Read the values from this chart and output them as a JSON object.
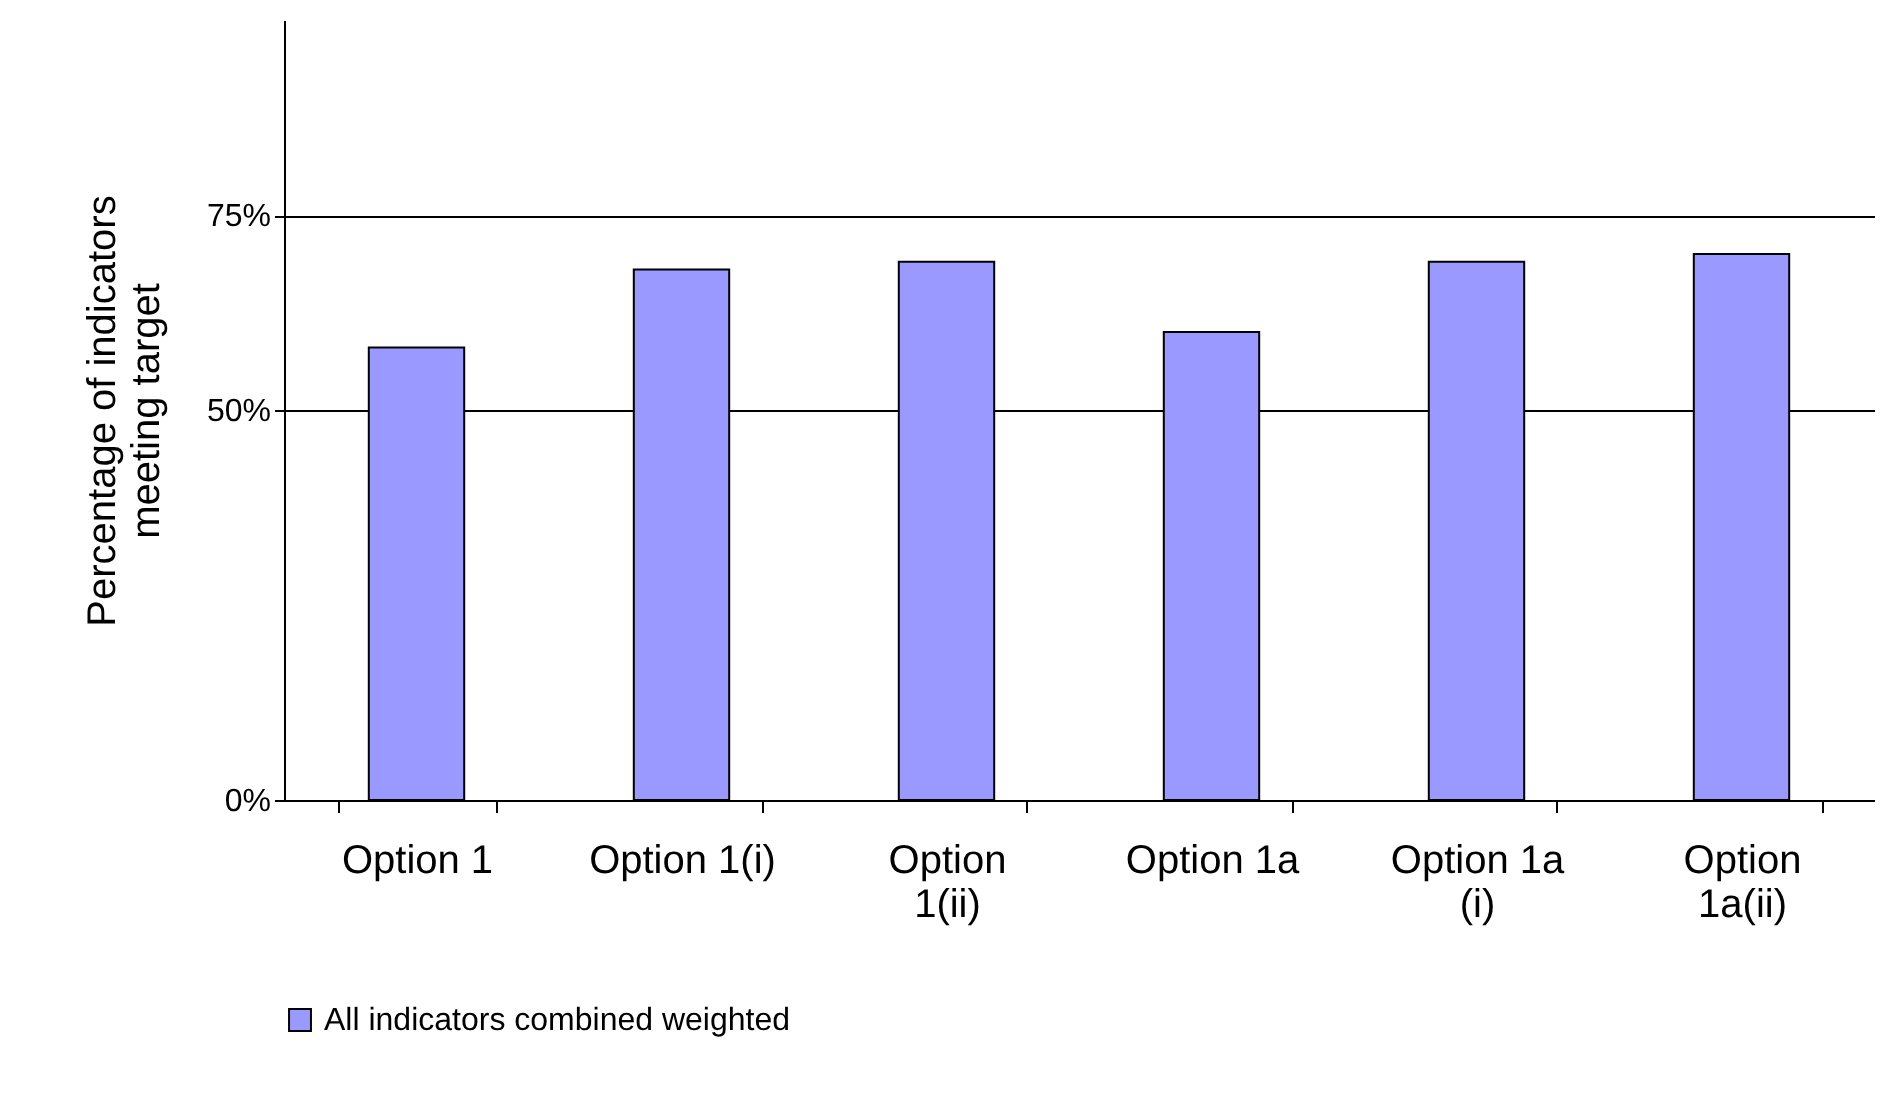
{
  "chart_data": {
    "type": "bar",
    "ylabel": "Percentage of indicators meeting target",
    "categories": [
      "Option 1",
      "Option 1(i)",
      "Option 1(ii)",
      "Option 1a",
      "Option 1a (i)",
      "Option 1a(ii)"
    ],
    "series": [
      {
        "name": "All indicators combined weighted",
        "color": "#9999ff",
        "values": [
          58,
          68,
          69,
          60,
          69,
          70
        ]
      }
    ],
    "ylim": [
      0,
      100
    ],
    "yticks": [
      {
        "value": 0,
        "label": "0%"
      },
      {
        "value": 50,
        "label": "50%"
      },
      {
        "value": 75,
        "label": "75%"
      }
    ],
    "grid": "y",
    "legend": "bottom"
  }
}
